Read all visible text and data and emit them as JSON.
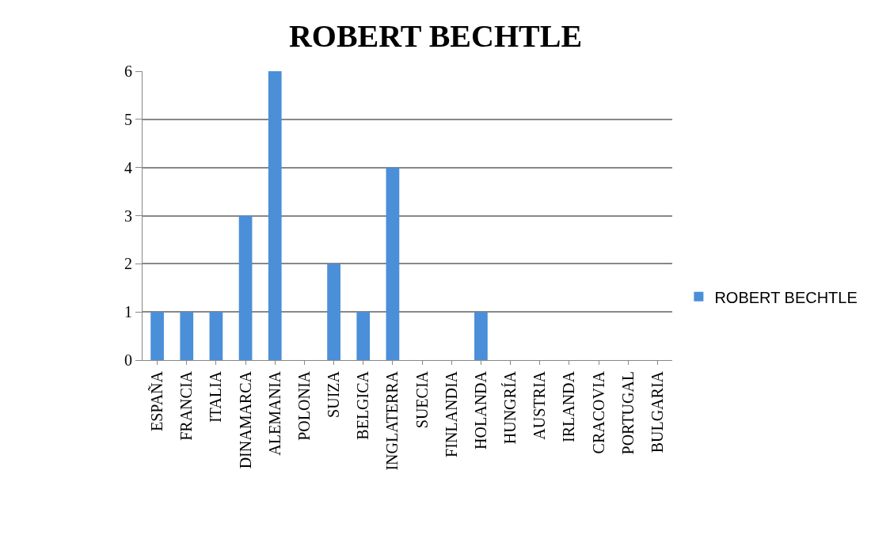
{
  "chart_data": {
    "type": "bar",
    "title": "ROBERT BECHTLE",
    "categories": [
      "ESPAÑA",
      "FRANCIA",
      "ITALIA",
      "DINAMARCA",
      "ALEMANIA",
      "POLONIA",
      "SUIZA",
      "BELGICA",
      "INGLATERRA",
      "SUECIA",
      "FINLANDIA",
      "HOLANDA",
      "HUNGRÍA",
      "AUSTRIA",
      "IRLANDA",
      "CRACOVIA",
      "PORTUGAL",
      "BULGARIA"
    ],
    "series": [
      {
        "name": "ROBERT BECHTLE",
        "color": "#4a8fd8",
        "values": [
          1,
          1,
          1,
          3,
          6,
          0,
          2,
          1,
          4,
          0,
          0,
          1,
          0,
          0,
          0,
          0,
          0,
          0
        ]
      }
    ],
    "ylim": [
      0,
      6
    ],
    "yticks": [
      0,
      1,
      2,
      3,
      4,
      5,
      6
    ],
    "grid": "y",
    "legend": "right"
  }
}
